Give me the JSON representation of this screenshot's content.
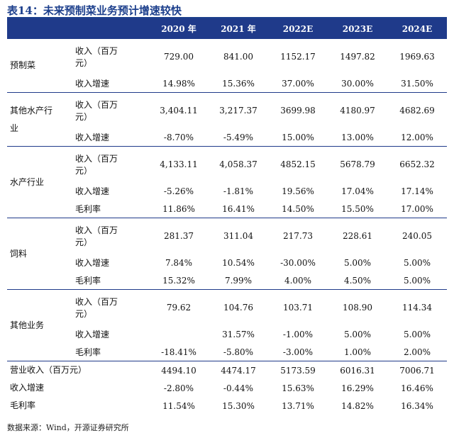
{
  "title": "表14：未来预制菜业务预计增速较快",
  "header": [
    "",
    "",
    "2020 年",
    "2021 年",
    "2022E",
    "2023E",
    "2024E"
  ],
  "groups": [
    {
      "name": "预制菜",
      "rows": [
        {
          "metric_line1": "收入（百万",
          "metric_line2": "元）",
          "values": [
            "729.00",
            "841.00",
            "1152.17",
            "1497.82",
            "1969.63"
          ]
        },
        {
          "metric": "收入增速",
          "values": [
            "14.98%",
            "15.36%",
            "37.00%",
            "30.00%",
            "31.50%"
          ]
        }
      ]
    },
    {
      "name_line1": "其他水产行",
      "name_line2": "业",
      "rows": [
        {
          "metric_line1": "收入（百万",
          "metric_line2": "元）",
          "values": [
            "3,404.11",
            "3,217.37",
            "3699.98",
            "4180.97",
            "4682.69"
          ]
        },
        {
          "metric": "收入增速",
          "values": [
            "-8.70%",
            "-5.49%",
            "15.00%",
            "13.00%",
            "12.00%"
          ]
        }
      ]
    },
    {
      "name": "水产行业",
      "rows": [
        {
          "metric_line1": "收入（百万",
          "metric_line2": "元）",
          "values": [
            "4,133.11",
            "4,058.37",
            "4852.15",
            "5678.79",
            "6652.32"
          ]
        },
        {
          "metric": "收入增速",
          "values": [
            "-5.26%",
            "-1.81%",
            "19.56%",
            "17.04%",
            "17.14%"
          ]
        },
        {
          "metric": "毛利率",
          "values": [
            "11.86%",
            "16.41%",
            "14.50%",
            "15.50%",
            "17.00%"
          ]
        }
      ]
    },
    {
      "name": "饲料",
      "rows": [
        {
          "metric_line1": "收入（百万",
          "metric_line2": "元）",
          "values": [
            "281.37",
            "311.04",
            "217.73",
            "228.61",
            "240.05"
          ]
        },
        {
          "metric": "收入增速",
          "values": [
            "7.84%",
            "10.54%",
            "-30.00%",
            "5.00%",
            "5.00%"
          ]
        },
        {
          "metric": "毛利率",
          "values": [
            "15.32%",
            "7.99%",
            "4.00%",
            "4.50%",
            "5.00%"
          ]
        }
      ]
    },
    {
      "name": "其他业务",
      "rows": [
        {
          "metric_line1": "收入（百万",
          "metric_line2": "元）",
          "values": [
            "79.62",
            "104.76",
            "103.71",
            "108.90",
            "114.34"
          ]
        },
        {
          "metric": "收入增速",
          "values": [
            "",
            "31.57%",
            "-1.00%",
            "5.00%",
            "5.00%"
          ]
        },
        {
          "metric": "毛利率",
          "values": [
            "-18.41%",
            "-5.80%",
            "-3.00%",
            "1.00%",
            "2.00%"
          ]
        }
      ]
    }
  ],
  "totals": [
    {
      "label": "营业收入（百万元）",
      "values": [
        "4494.10",
        "4474.17",
        "5173.59",
        "6016.31",
        "7006.71"
      ]
    },
    {
      "label": "收入增速",
      "values": [
        "-2.80%",
        "-0.44%",
        "15.63%",
        "16.29%",
        "16.46%"
      ]
    },
    {
      "label": "毛利率",
      "values": [
        "11.54%",
        "15.30%",
        "13.71%",
        "14.82%",
        "16.34%"
      ]
    }
  ],
  "source": "数据来源：Wind，开源证券研究所"
}
